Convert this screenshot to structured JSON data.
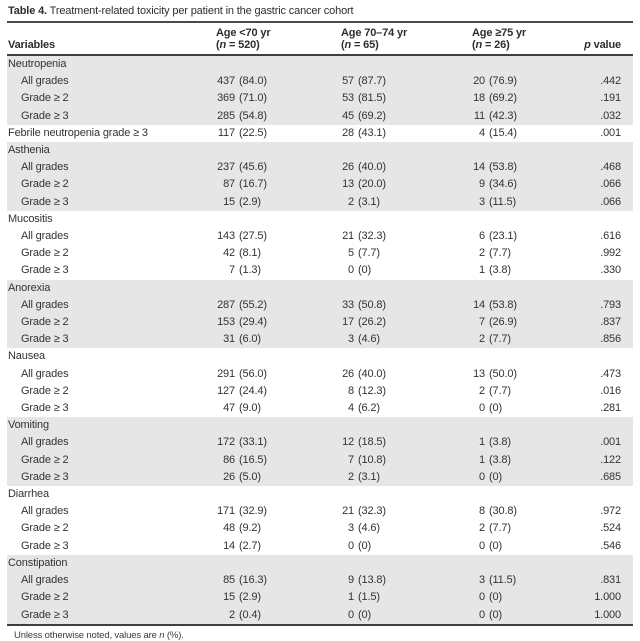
{
  "title": {
    "label": "Table 4.",
    "text": " Treatment-related toxicity per patient in the gastric cancer cohort"
  },
  "header": {
    "variables": "Variables",
    "age_groups": [
      {
        "line1": "Age <70 yr",
        "paren_open": "(",
        "n_italic": "n",
        "paren_rest": " = 520)"
      },
      {
        "line1": "Age 70–74 yr",
        "paren_open": "(",
        "n_italic": "n",
        "paren_rest": " = 65)"
      },
      {
        "line1": "Age ≥75 yr",
        "paren_open": "(",
        "n_italic": "n",
        "paren_rest": " = 26)"
      }
    ],
    "p_italic": "p",
    "p_rest": " value"
  },
  "table": {
    "rows": [
      {
        "type": "section",
        "shaded": true,
        "label": "Neutropenia"
      },
      {
        "type": "data",
        "shaded": true,
        "indent": true,
        "label": "All grades",
        "v1": [
          "437",
          "(84.0)"
        ],
        "v2": [
          "57",
          "(87.7)"
        ],
        "v3": [
          "20",
          "(76.9)"
        ],
        "p": ".442"
      },
      {
        "type": "data",
        "shaded": true,
        "indent": true,
        "label": "Grade ≥ 2",
        "v1": [
          "369",
          "(71.0)"
        ],
        "v2": [
          "53",
          "(81.5)"
        ],
        "v3": [
          "18",
          "(69.2)"
        ],
        "p": ".191"
      },
      {
        "type": "data",
        "shaded": true,
        "indent": true,
        "label": "Grade ≥ 3",
        "v1": [
          "285",
          "(54.8)"
        ],
        "v2": [
          "45",
          "(69.2)"
        ],
        "v3": [
          "11",
          "(42.3)"
        ],
        "p": ".032"
      },
      {
        "type": "data",
        "shaded": false,
        "indent": false,
        "label": "Febrile neutropenia grade ≥ 3",
        "v1": [
          "117",
          "(22.5)"
        ],
        "v2": [
          "28",
          "(43.1)"
        ],
        "v3": [
          "4",
          "(15.4)"
        ],
        "p": ".001"
      },
      {
        "type": "section",
        "shaded": true,
        "label": "Asthenia"
      },
      {
        "type": "data",
        "shaded": true,
        "indent": true,
        "label": "All grades",
        "v1": [
          "237",
          "(45.6)"
        ],
        "v2": [
          "26",
          "(40.0)"
        ],
        "v3": [
          "14",
          "(53.8)"
        ],
        "p": ".468"
      },
      {
        "type": "data",
        "shaded": true,
        "indent": true,
        "label": "Grade ≥ 2",
        "v1": [
          "87",
          "(16.7)"
        ],
        "v2": [
          "13",
          "(20.0)"
        ],
        "v3": [
          "9",
          "(34.6)"
        ],
        "p": ".066"
      },
      {
        "type": "data",
        "shaded": true,
        "indent": true,
        "label": "Grade ≥ 3",
        "v1": [
          "15",
          "(2.9)"
        ],
        "v2": [
          "2",
          "(3.1)"
        ],
        "v3": [
          "3",
          "(11.5)"
        ],
        "p": ".066"
      },
      {
        "type": "section",
        "shaded": false,
        "label": "Mucositis"
      },
      {
        "type": "data",
        "shaded": false,
        "indent": true,
        "label": "All grades",
        "v1": [
          "143",
          "(27.5)"
        ],
        "v2": [
          "21",
          "(32.3)"
        ],
        "v3": [
          "6",
          "(23.1)"
        ],
        "p": ".616"
      },
      {
        "type": "data",
        "shaded": false,
        "indent": true,
        "label": "Grade ≥ 2",
        "v1": [
          "42",
          "(8.1)"
        ],
        "v2": [
          "5",
          "(7.7)"
        ],
        "v3": [
          "2",
          "(7.7)"
        ],
        "p": ".992"
      },
      {
        "type": "data",
        "shaded": false,
        "indent": true,
        "label": "Grade ≥ 3",
        "v1": [
          "7",
          "(1.3)"
        ],
        "v2": [
          "0",
          "(0)"
        ],
        "v3": [
          "1",
          "(3.8)"
        ],
        "p": ".330"
      },
      {
        "type": "section",
        "shaded": true,
        "label": "Anorexia"
      },
      {
        "type": "data",
        "shaded": true,
        "indent": true,
        "label": "All grades",
        "v1": [
          "287",
          "(55.2)"
        ],
        "v2": [
          "33",
          "(50.8)"
        ],
        "v3": [
          "14",
          "(53.8)"
        ],
        "p": ".793"
      },
      {
        "type": "data",
        "shaded": true,
        "indent": true,
        "label": "Grade ≥ 2",
        "v1": [
          "153",
          "(29.4)"
        ],
        "v2": [
          "17",
          "(26.2)"
        ],
        "v3": [
          "7",
          "(26.9)"
        ],
        "p": ".837"
      },
      {
        "type": "data",
        "shaded": true,
        "indent": true,
        "label": "Grade ≥ 3",
        "v1": [
          "31",
          "(6.0)"
        ],
        "v2": [
          "3",
          "(4.6)"
        ],
        "v3": [
          "2",
          "(7.7)"
        ],
        "p": ".856"
      },
      {
        "type": "section",
        "shaded": false,
        "label": "Nausea"
      },
      {
        "type": "data",
        "shaded": false,
        "indent": true,
        "label": "All grades",
        "v1": [
          "291",
          "(56.0)"
        ],
        "v2": [
          "26",
          "(40.0)"
        ],
        "v3": [
          "13",
          "(50.0)"
        ],
        "p": ".473"
      },
      {
        "type": "data",
        "shaded": false,
        "indent": true,
        "label": "Grade ≥ 2",
        "v1": [
          "127",
          "(24.4)"
        ],
        "v2": [
          "8",
          "(12.3)"
        ],
        "v3": [
          "2",
          "(7.7)"
        ],
        "p": ".016"
      },
      {
        "type": "data",
        "shaded": false,
        "indent": true,
        "label": "Grade ≥ 3",
        "v1": [
          "47",
          "(9.0)"
        ],
        "v2": [
          "4",
          "(6.2)"
        ],
        "v3": [
          "0",
          "(0)"
        ],
        "p": ".281"
      },
      {
        "type": "section",
        "shaded": true,
        "label": "Vomiting"
      },
      {
        "type": "data",
        "shaded": true,
        "indent": true,
        "label": "All grades",
        "v1": [
          "172",
          "(33.1)"
        ],
        "v2": [
          "12",
          "(18.5)"
        ],
        "v3": [
          "1",
          "(3.8)"
        ],
        "p": ".001"
      },
      {
        "type": "data",
        "shaded": true,
        "indent": true,
        "label": "Grade ≥ 2",
        "v1": [
          "86",
          "(16.5)"
        ],
        "v2": [
          "7",
          "(10.8)"
        ],
        "v3": [
          "1",
          "(3.8)"
        ],
        "p": ".122"
      },
      {
        "type": "data",
        "shaded": true,
        "indent": true,
        "label": "Grade ≥ 3",
        "v1": [
          "26",
          "(5.0)"
        ],
        "v2": [
          "2",
          "(3.1)"
        ],
        "v3": [
          "0",
          "(0)"
        ],
        "p": ".685"
      },
      {
        "type": "section",
        "shaded": false,
        "label": "Diarrhea"
      },
      {
        "type": "data",
        "shaded": false,
        "indent": true,
        "label": "All grades",
        "v1": [
          "171",
          "(32.9)"
        ],
        "v2": [
          "21",
          "(32.3)"
        ],
        "v3": [
          "8",
          "(30.8)"
        ],
        "p": ".972"
      },
      {
        "type": "data",
        "shaded": false,
        "indent": true,
        "label": "Grade ≥ 2",
        "v1": [
          "48",
          "(9.2)"
        ],
        "v2": [
          "3",
          "(4.6)"
        ],
        "v3": [
          "2",
          "(7.7)"
        ],
        "p": ".524"
      },
      {
        "type": "data",
        "shaded": false,
        "indent": true,
        "label": "Grade ≥ 3",
        "v1": [
          "14",
          "(2.7)"
        ],
        "v2": [
          "0",
          "(0)"
        ],
        "v3": [
          "0",
          "(0)"
        ],
        "p": ".546"
      },
      {
        "type": "section",
        "shaded": true,
        "label": "Constipation"
      },
      {
        "type": "data",
        "shaded": true,
        "indent": true,
        "label": "All grades",
        "v1": [
          "85",
          "(16.3)"
        ],
        "v2": [
          "9",
          "(13.8)"
        ],
        "v3": [
          "3",
          "(11.5)"
        ],
        "p": ".831"
      },
      {
        "type": "data",
        "shaded": true,
        "indent": true,
        "label": "Grade ≥ 2",
        "v1": [
          "15",
          "(2.9)"
        ],
        "v2": [
          "1",
          "(1.5)"
        ],
        "v3": [
          "0",
          "(0)"
        ],
        "p": "1.000"
      },
      {
        "type": "data",
        "shaded": true,
        "indent": true,
        "label": "Grade ≥ 3",
        "v1": [
          "2",
          "(0.4)"
        ],
        "v2": [
          "0",
          "(0)"
        ],
        "v3": [
          "0",
          "(0)"
        ],
        "p": "1.000"
      }
    ]
  },
  "footnote": {
    "pre": "Unless otherwise noted, values are ",
    "n_italic": "n",
    "post": " (%)."
  },
  "colors": {
    "shaded_row": "#e6e6e6",
    "rule": "#3e3e3e",
    "text": "#333333",
    "background": "#ffffff"
  }
}
